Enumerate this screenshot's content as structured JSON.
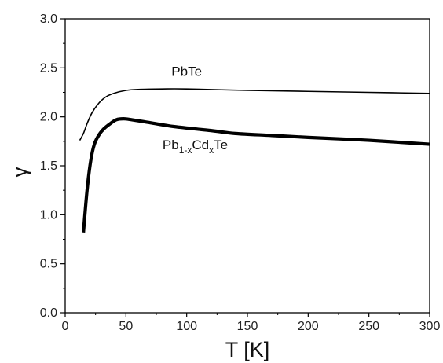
{
  "chart_data": {
    "type": "line",
    "title": "",
    "xlabel": "T [K]",
    "ylabel": "γ",
    "xlim": [
      0,
      300
    ],
    "ylim": [
      0.0,
      3.0
    ],
    "x_ticks": [
      "0",
      "50",
      "100",
      "150",
      "200",
      "250",
      "300"
    ],
    "y_ticks": [
      "0.0",
      "0.5",
      "1.0",
      "1.5",
      "2.0",
      "2.5",
      "3.0"
    ],
    "grid": false,
    "legend": "none",
    "series": [
      {
        "name": "PbTe",
        "color": "#000000",
        "line_weight": "thin",
        "points": [
          [
            12,
            1.76
          ],
          [
            15,
            1.83
          ],
          [
            18,
            1.93
          ],
          [
            22,
            2.04
          ],
          [
            27,
            2.13
          ],
          [
            33,
            2.2
          ],
          [
            40,
            2.24
          ],
          [
            50,
            2.27
          ],
          [
            60,
            2.28
          ],
          [
            80,
            2.285
          ],
          [
            100,
            2.285
          ],
          [
            150,
            2.27
          ],
          [
            200,
            2.26
          ],
          [
            250,
            2.25
          ],
          [
            300,
            2.24
          ]
        ]
      },
      {
        "name": "Pb1-xCdxTe",
        "color": "#000000",
        "line_weight": "thick",
        "points": [
          [
            15,
            0.82
          ],
          [
            18,
            1.25
          ],
          [
            21,
            1.55
          ],
          [
            24,
            1.72
          ],
          [
            28,
            1.82
          ],
          [
            32,
            1.88
          ],
          [
            37,
            1.93
          ],
          [
            42,
            1.97
          ],
          [
            48,
            1.98
          ],
          [
            55,
            1.97
          ],
          [
            70,
            1.94
          ],
          [
            90,
            1.9
          ],
          [
            120,
            1.86
          ],
          [
            140,
            1.83
          ],
          [
            170,
            1.81
          ],
          [
            200,
            1.79
          ],
          [
            250,
            1.76
          ],
          [
            300,
            1.72
          ]
        ]
      }
    ],
    "annotations": [
      {
        "text_main": "PbTe",
        "x": 100,
        "y": 2.42
      },
      {
        "text_main": "Pb",
        "sub1": "1-x",
        "text_mid": "Cd",
        "sub2": "x",
        "text_end": "Te",
        "x": 107,
        "y": 1.67
      }
    ]
  }
}
